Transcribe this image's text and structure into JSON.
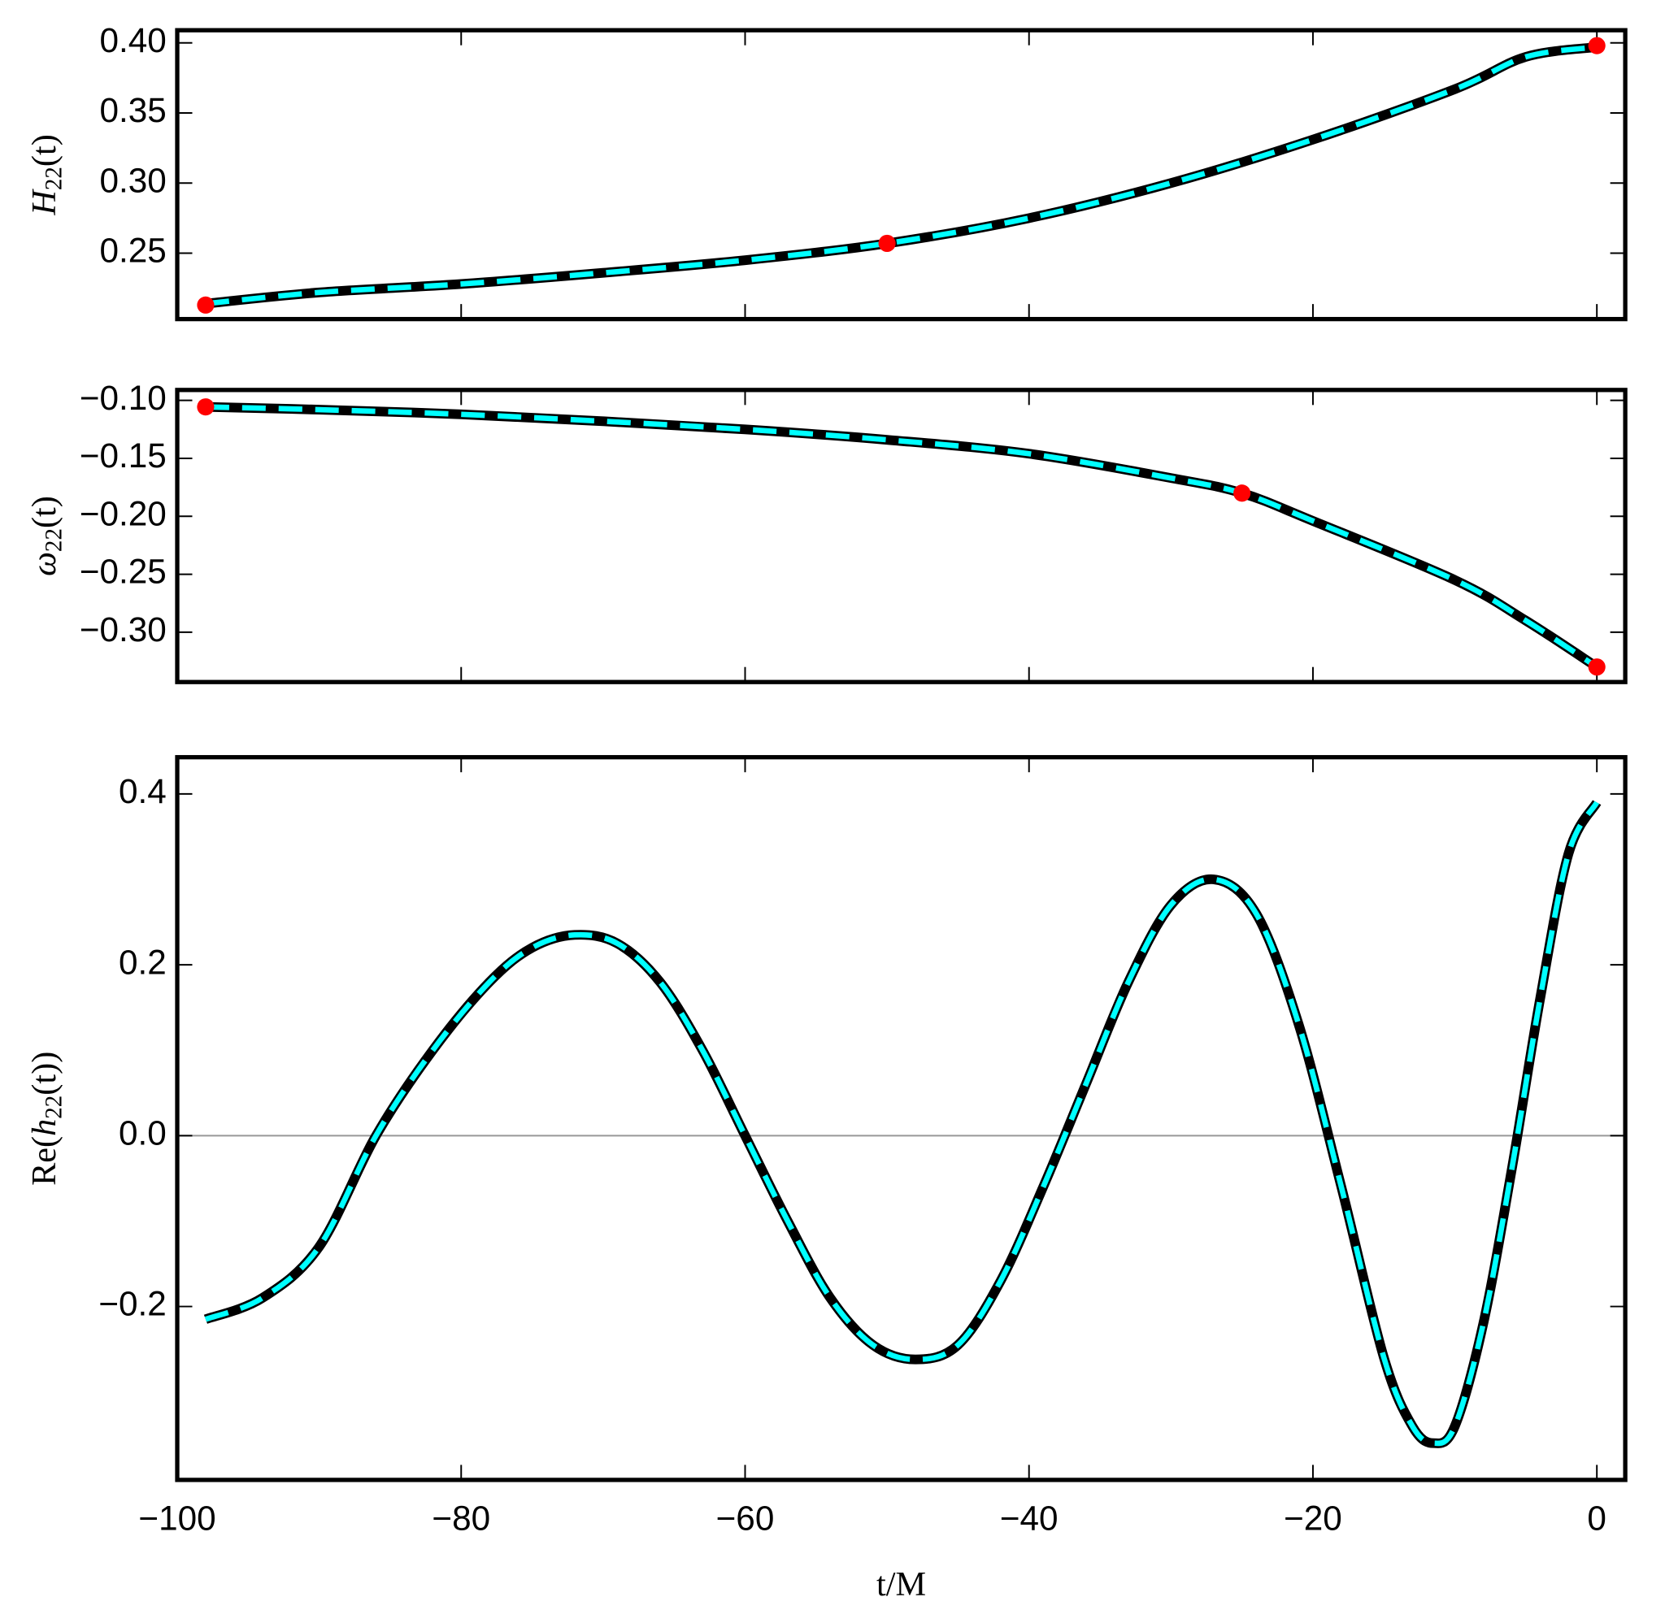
{
  "chart_data": [
    {
      "type": "line",
      "ylabel": {
        "base": "H",
        "sub": "22",
        "rest": "(t)"
      },
      "xlim": [
        -100,
        2
      ],
      "ylim": [
        0.203,
        0.409
      ],
      "xticks": [
        {
          "value": -100,
          "label": "−100"
        },
        {
          "value": -80,
          "label": "−80"
        },
        {
          "value": -60,
          "label": "−60"
        },
        {
          "value": -40,
          "label": "−40"
        },
        {
          "value": -20,
          "label": "−20"
        },
        0
      ],
      "show_xtick_labels": false,
      "yticks": [
        0.25,
        {
          "value": 0.3,
          "label": "0.30"
        },
        0.35,
        {
          "value": 0.4,
          "label": "0.40"
        }
      ],
      "x": [
        -98,
        -90,
        -80,
        -70,
        -60,
        -50,
        -40,
        -30,
        -20,
        -10,
        -5,
        0
      ],
      "series": [
        {
          "values": [
            0.214,
            0.222,
            0.228,
            0.236,
            0.245,
            0.257,
            0.275,
            0.3,
            0.331,
            0.367,
            0.39,
            0.397
          ]
        }
      ],
      "line_colors": [
        "#000000",
        "#00ffff"
      ],
      "markers": {
        "color": "#ff0000",
        "x": [
          -98,
          -50,
          0
        ],
        "values": [
          0.213,
          0.257,
          0.398
        ]
      }
    },
    {
      "type": "line",
      "ylabel": {
        "base": "ω",
        "sub": "22",
        "rest": "(t)"
      },
      "xlim": [
        -100,
        2
      ],
      "ylim": [
        -0.343,
        -0.091
      ],
      "xticks": [
        {
          "value": -100,
          "label": "−100"
        },
        {
          "value": -80,
          "label": "−80"
        },
        {
          "value": -60,
          "label": "−60"
        },
        {
          "value": -40,
          "label": "−40"
        },
        {
          "value": -20,
          "label": "−20"
        },
        0
      ],
      "show_xtick_labels": false,
      "yticks": [
        {
          "value": -0.3,
          "label": "−0.30"
        },
        {
          "value": -0.25,
          "label": "−0.25"
        },
        {
          "value": -0.2,
          "label": "−0.20"
        },
        {
          "value": -0.15,
          "label": "−0.15"
        },
        {
          "value": -0.1,
          "label": "−0.10"
        }
      ],
      "x": [
        -98,
        -90,
        -80,
        -70,
        -60,
        -50,
        -40,
        -30,
        -25,
        -20,
        -10,
        -5,
        0
      ],
      "series": [
        {
          "values": [
            -0.1056,
            -0.108,
            -0.112,
            -0.118,
            -0.125,
            -0.134,
            -0.146,
            -0.167,
            -0.18,
            -0.204,
            -0.255,
            -0.29,
            -0.33
          ]
        }
      ],
      "line_colors": [
        "#000000",
        "#00ffff"
      ],
      "markers": {
        "color": "#ff0000",
        "x": [
          -98,
          -25,
          0
        ],
        "values": [
          -0.1056,
          -0.18,
          -0.33
        ]
      }
    },
    {
      "type": "line",
      "ylabel": {
        "pre": "Re(",
        "base": "h",
        "sub": "22",
        "rest": "(t))"
      },
      "xlabel": "t/M",
      "xlim": [
        -100,
        2
      ],
      "ylim": [
        -0.403,
        0.443
      ],
      "xticks": [
        {
          "value": -100,
          "label": "−100"
        },
        {
          "value": -80,
          "label": "−80"
        },
        {
          "value": -60,
          "label": "−60"
        },
        {
          "value": -40,
          "label": "−40"
        },
        {
          "value": -20,
          "label": "−20"
        },
        0
      ],
      "show_xtick_labels": true,
      "yticks": [
        {
          "value": -0.2,
          "label": "−0.2"
        },
        {
          "value": 0,
          "label": "0.0"
        },
        0.2,
        0.4
      ],
      "zero_line": true,
      "x": [
        -98,
        -94,
        -90,
        -86,
        -82,
        -78,
        -75,
        -72,
        -69,
        -66,
        -63,
        -60,
        -57,
        -54,
        -51,
        -48,
        -45,
        -42,
        -39,
        -36,
        -33,
        -30,
        -27,
        -24,
        -21,
        -18,
        -15,
        -13,
        -11.5,
        -10,
        -8,
        -6,
        -4,
        -2,
        0
      ],
      "series": [
        {
          "values": [
            -0.215,
            -0.19,
            -0.13,
            0.0,
            0.1,
            0.18,
            0.22,
            0.235,
            0.225,
            0.18,
            0.1,
            0.0,
            -0.1,
            -0.19,
            -0.245,
            -0.262,
            -0.245,
            -0.17,
            -0.06,
            0.06,
            0.18,
            0.27,
            0.3,
            0.26,
            0.13,
            -0.06,
            -0.26,
            -0.34,
            -0.36,
            -0.34,
            -0.22,
            -0.04,
            0.16,
            0.33,
            0.39
          ]
        }
      ],
      "line_colors": [
        "#000000",
        "#00ffff"
      ]
    }
  ]
}
